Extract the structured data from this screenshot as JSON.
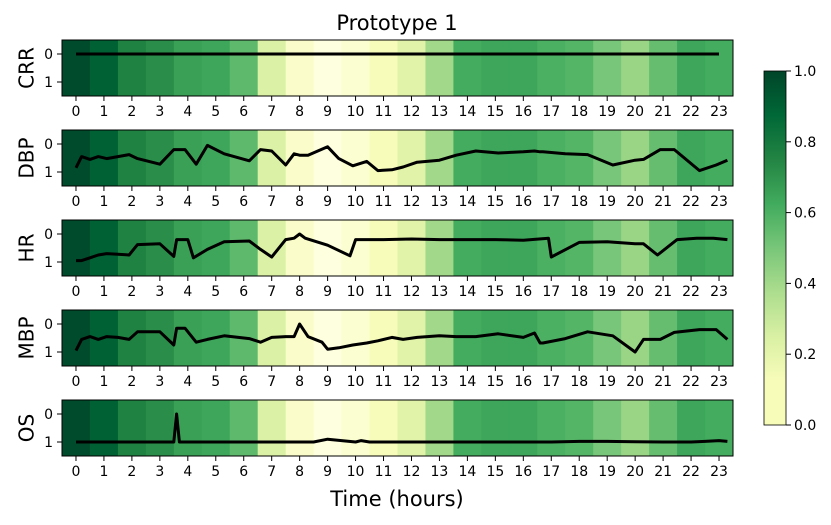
{
  "chart_data": {
    "type": "heatmap",
    "title": "Prototype 1",
    "xlabel": "Time (hours)",
    "x_ticks": [
      "0",
      "1",
      "2",
      "3",
      "4",
      "5",
      "6",
      "7",
      "8",
      "9",
      "10",
      "11",
      "12",
      "13",
      "14",
      "15",
      "16",
      "17",
      "18",
      "19",
      "20",
      "21",
      "22",
      "23"
    ],
    "y_ticks": [
      "0",
      "1"
    ],
    "heatmap_values": [
      0.98,
      0.9,
      0.76,
      0.72,
      0.66,
      0.64,
      0.56,
      0.24,
      0.08,
      0.02,
      0.06,
      0.12,
      0.22,
      0.4,
      0.62,
      0.64,
      0.64,
      0.6,
      0.58,
      0.5,
      0.42,
      0.54,
      0.64,
      0.62
    ],
    "colorbar": {
      "min": 0.0,
      "max": 1.0,
      "ticks": [
        "0.0",
        "0.2",
        "0.4",
        "0.6",
        "0.8",
        "1.0"
      ],
      "colormap": "Greens"
    },
    "xlim": [
      -0.5,
      23.5
    ],
    "ylim": [
      1.5,
      -0.5
    ],
    "series": [
      {
        "name": "CRR",
        "x": [
          0,
          23
        ],
        "y": [
          0.0,
          0.0
        ]
      },
      {
        "name": "DBP",
        "x": [
          0,
          0.2,
          0.5,
          0.8,
          1.1,
          1.5,
          1.9,
          2.2,
          3.0,
          3.5,
          3.6,
          3.9,
          4.3,
          4.7,
          5.3,
          6.2,
          6.6,
          7.0,
          7.5,
          7.8,
          8.0,
          8.3,
          9.0,
          9.4,
          9.9,
          10.4,
          10.8,
          11.3,
          11.7,
          12.2,
          13.0,
          13.6,
          14.3,
          15.1,
          16.0,
          16.4,
          16.6,
          16.7,
          17.5,
          18.3,
          19.2,
          20.0,
          20.3,
          20.9,
          21.4,
          22.3,
          22.9,
          23.3
        ],
        "y": [
          0.85,
          0.45,
          0.55,
          0.45,
          0.52,
          0.45,
          0.38,
          0.52,
          0.72,
          0.2,
          0.2,
          0.2,
          0.72,
          0.05,
          0.35,
          0.6,
          0.2,
          0.25,
          0.75,
          0.35,
          0.4,
          0.4,
          0.1,
          0.52,
          0.78,
          0.62,
          0.95,
          0.92,
          0.82,
          0.65,
          0.58,
          0.4,
          0.25,
          0.32,
          0.28,
          0.25,
          0.28,
          0.28,
          0.35,
          0.38,
          0.75,
          0.58,
          0.55,
          0.2,
          0.2,
          0.95,
          0.75,
          0.58
        ]
      },
      {
        "name": "HR",
        "x": [
          0,
          0.2,
          0.5,
          0.8,
          1.1,
          1.5,
          1.9,
          2.2,
          3.0,
          3.5,
          3.6,
          4.0,
          4.2,
          4.7,
          5.3,
          6.2,
          6.6,
          7.0,
          7.5,
          7.8,
          8.0,
          8.2,
          9.0,
          9.8,
          10.0,
          11.0,
          12.0,
          13.0,
          14.0,
          15.0,
          16.0,
          16.9,
          17.0,
          18.0,
          19.0,
          20.0,
          20.3,
          20.8,
          21.5,
          22.2,
          22.8,
          23.3
        ],
        "y": [
          0.95,
          0.95,
          0.85,
          0.75,
          0.7,
          0.72,
          0.75,
          0.38,
          0.35,
          0.8,
          0.2,
          0.2,
          0.85,
          0.55,
          0.28,
          0.25,
          0.55,
          0.82,
          0.2,
          0.15,
          0.0,
          0.15,
          0.4,
          0.78,
          0.2,
          0.2,
          0.18,
          0.2,
          0.2,
          0.2,
          0.22,
          0.15,
          0.82,
          0.3,
          0.28,
          0.35,
          0.35,
          0.75,
          0.2,
          0.15,
          0.15,
          0.2
        ]
      },
      {
        "name": "MBP",
        "x": [
          0,
          0.2,
          0.5,
          0.8,
          1.1,
          1.5,
          1.9,
          2.2,
          3.0,
          3.5,
          3.6,
          3.9,
          4.3,
          4.7,
          5.3,
          6.2,
          6.6,
          7.0,
          7.5,
          7.8,
          8.0,
          8.3,
          8.8,
          9.0,
          9.4,
          9.9,
          10.4,
          10.8,
          11.3,
          11.7,
          12.2,
          13.0,
          13.6,
          14.3,
          15.1,
          16.0,
          16.4,
          16.6,
          16.7,
          17.5,
          18.3,
          19.2,
          20.0,
          20.3,
          20.9,
          21.4,
          22.3,
          22.9,
          23.3
        ],
        "y": [
          0.95,
          0.55,
          0.45,
          0.55,
          0.45,
          0.48,
          0.55,
          0.28,
          0.28,
          0.75,
          0.15,
          0.15,
          0.65,
          0.55,
          0.42,
          0.52,
          0.65,
          0.48,
          0.45,
          0.45,
          0.0,
          0.45,
          0.65,
          0.9,
          0.85,
          0.75,
          0.68,
          0.6,
          0.48,
          0.55,
          0.48,
          0.42,
          0.45,
          0.45,
          0.35,
          0.48,
          0.32,
          0.68,
          0.68,
          0.52,
          0.28,
          0.42,
          1.0,
          0.55,
          0.55,
          0.3,
          0.2,
          0.2,
          0.55
        ]
      },
      {
        "name": "OS",
        "x": [
          0,
          1,
          2,
          3,
          3.5,
          3.6,
          3.7,
          4,
          5,
          6,
          7,
          8,
          8.5,
          9.0,
          9.5,
          10.0,
          10.2,
          10.5,
          11,
          12,
          13,
          14,
          15,
          16,
          17,
          18,
          19,
          20,
          21,
          22,
          22.5,
          23.0,
          23.3
        ],
        "y": [
          1.0,
          1.0,
          1.0,
          1.0,
          1.0,
          0.0,
          1.0,
          1.0,
          1.0,
          1.0,
          1.0,
          1.0,
          1.0,
          0.9,
          0.95,
          1.0,
          0.95,
          1.0,
          1.0,
          1.0,
          1.0,
          1.0,
          1.0,
          1.0,
          1.0,
          0.98,
          0.98,
          0.99,
          1.0,
          1.0,
          0.98,
          0.95,
          0.98
        ]
      }
    ]
  }
}
